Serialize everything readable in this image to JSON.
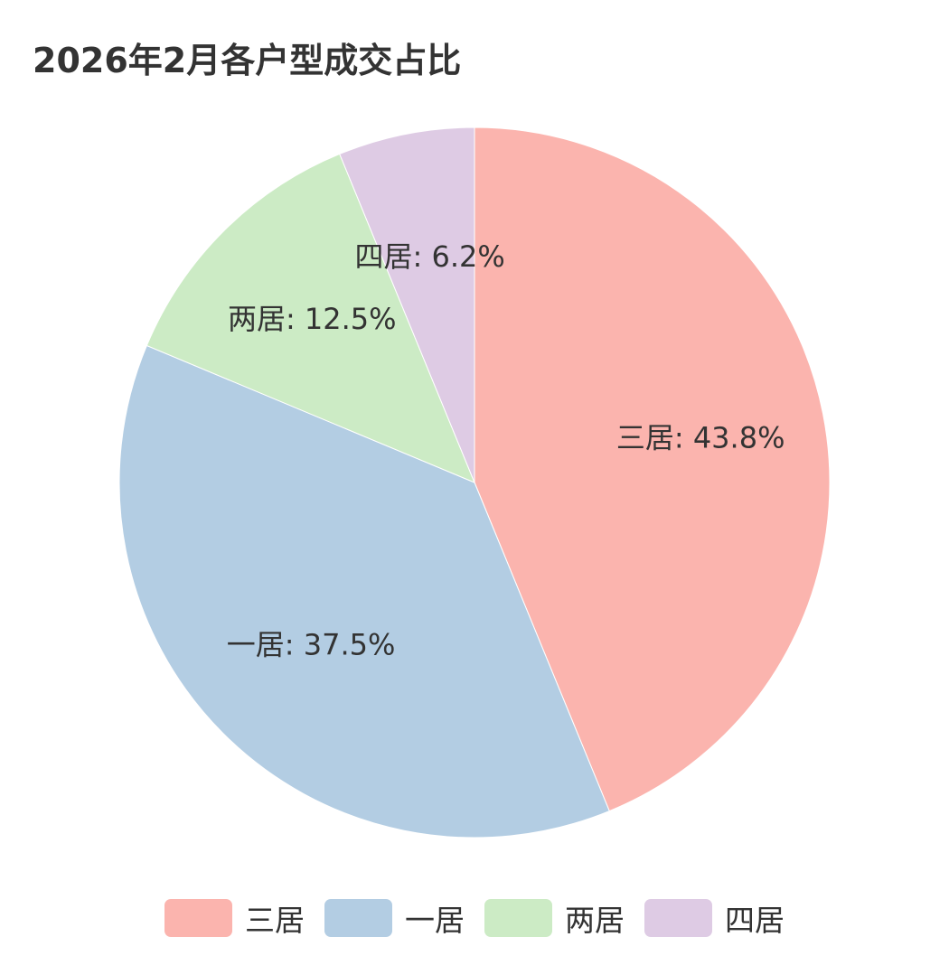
{
  "chart_data": {
    "type": "pie",
    "title": "2026年2月各户型成交占比",
    "categories": [
      "三居",
      "一居",
      "两居",
      "四居"
    ],
    "values": [
      43.8,
      37.5,
      12.5,
      6.2
    ],
    "labels": [
      "三居: 43.8%",
      "一居: 37.5%",
      "两居: 12.5%",
      "四居: 6.2%"
    ],
    "colors": [
      "#fbb4ae",
      "#b3cde3",
      "#ccebc5",
      "#decbe4"
    ],
    "legend_position": "bottom",
    "start_angle": "top",
    "direction": "clockwise"
  }
}
